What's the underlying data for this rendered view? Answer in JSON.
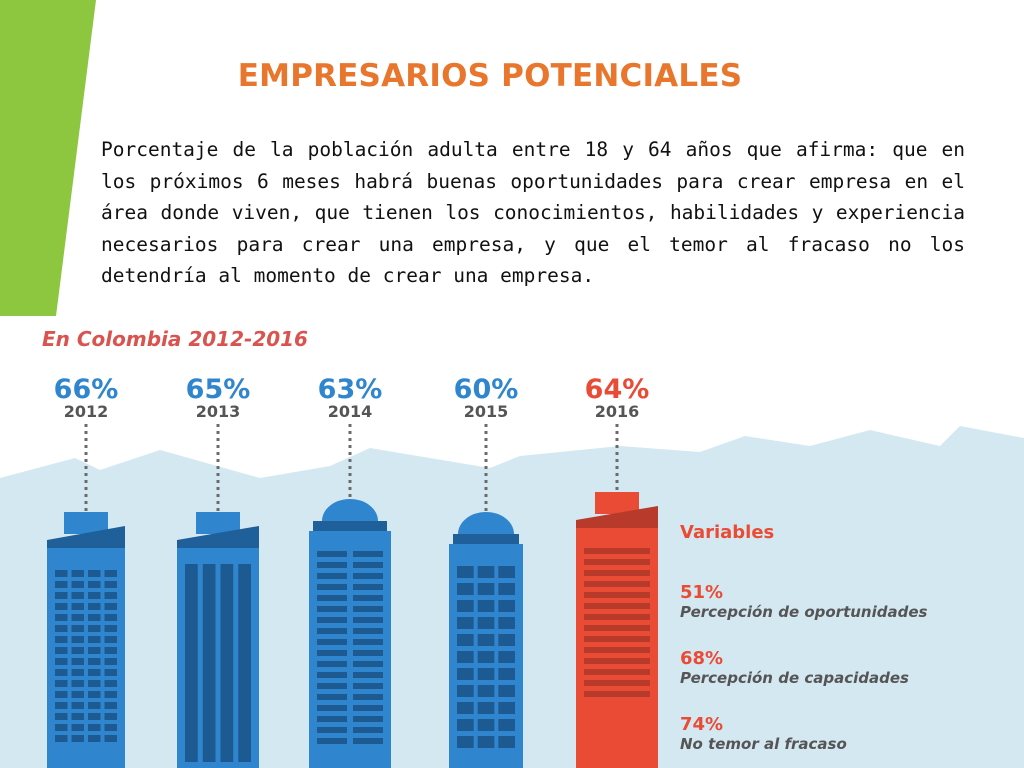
{
  "slide": {
    "title": "EMPRESARIOS POTENCIALES",
    "description": "Porcentaje de la población adulta entre 18 y 64 años que afirma: que en los próximos 6 meses habrá buenas oportunidades para crear empresa en el área donde viven, que tienen los conocimientos, habilidades y experiencia necesarios para crear una empresa, y que el temor al fracaso no los detendría al momento de crear una empresa.",
    "colors": {
      "title": "#e8762c",
      "accent_green": "#8dc63f",
      "chart_blue": "#2f86cf",
      "chart_red": "#e94b35",
      "subtitle_red": "#d9534f",
      "year_grey": "#555555",
      "skyline": "#d4e8f2"
    }
  },
  "chart_data": {
    "type": "bar",
    "title": "En Colombia 2012-2016",
    "categories": [
      "2012",
      "2013",
      "2014",
      "2015",
      "2016"
    ],
    "values": [
      66,
      65,
      63,
      60,
      64
    ],
    "value_labels": [
      "66%",
      "65%",
      "63%",
      "60%",
      "64%"
    ],
    "unit": "%",
    "highlight_category": "2016",
    "legend": {
      "title": "Variables",
      "items": [
        {
          "value": 51,
          "value_label": "51%",
          "label": "Percepción de oportunidades"
        },
        {
          "value": 68,
          "value_label": "68%",
          "label": "Percepción de capacidades"
        },
        {
          "value": 74,
          "value_label": "74%",
          "label": "No temor al fracaso"
        }
      ]
    }
  }
}
